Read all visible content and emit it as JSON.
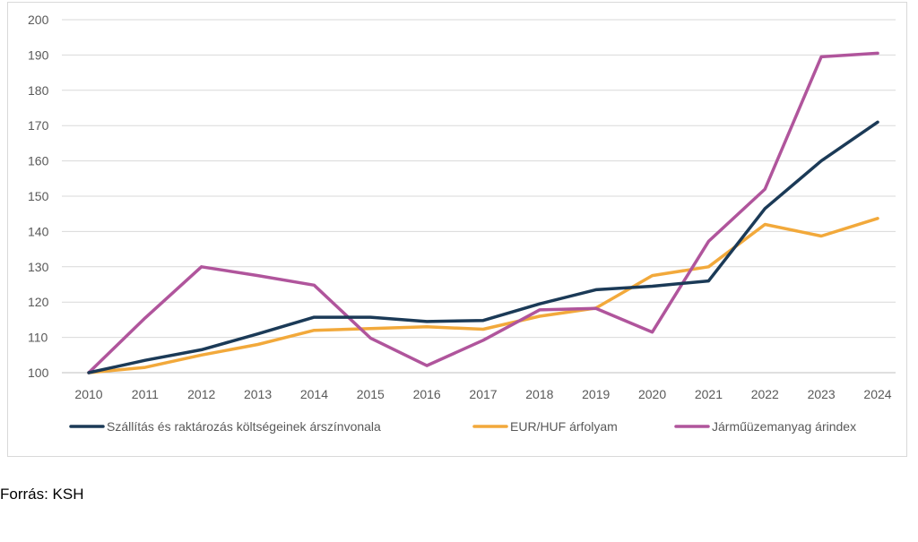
{
  "chart_data": {
    "type": "line",
    "title": "",
    "xlabel": "",
    "ylabel": "",
    "categories": [
      "2010",
      "2011",
      "2012",
      "2013",
      "2014",
      "2015",
      "2016",
      "2017",
      "2018",
      "2019",
      "2020",
      "2021",
      "2022",
      "2023",
      "2024"
    ],
    "ylim": [
      100,
      200
    ],
    "yticks": [
      100,
      110,
      120,
      130,
      140,
      150,
      160,
      170,
      180,
      190,
      200
    ],
    "grid": "horizontal",
    "legend_position": "bottom",
    "series": [
      {
        "name": "Szállítás és raktározás költségeinek árszínvonala",
        "color": "#1b3a57",
        "values": [
          100,
          103.5,
          106.5,
          111,
          115.7,
          115.7,
          114.5,
          114.8,
          119.5,
          123.5,
          124.5,
          126,
          146.5,
          160,
          171
        ]
      },
      {
        "name": "EUR/HUF árfolyam",
        "color": "#f2a93b",
        "values": [
          100,
          101.5,
          105,
          108,
          112,
          112.5,
          113,
          112.3,
          116,
          118.3,
          127.5,
          130,
          142,
          138.7,
          143.7
        ]
      },
      {
        "name": "Járműüzemanyag árindex",
        "color": "#b0559c",
        "values": [
          100,
          115.5,
          130,
          127.5,
          124.8,
          109.8,
          102,
          109.2,
          117.8,
          118.2,
          111.5,
          137.2,
          152,
          189.5,
          190.5
        ]
      }
    ]
  },
  "source_note": "Forrás: KSH"
}
